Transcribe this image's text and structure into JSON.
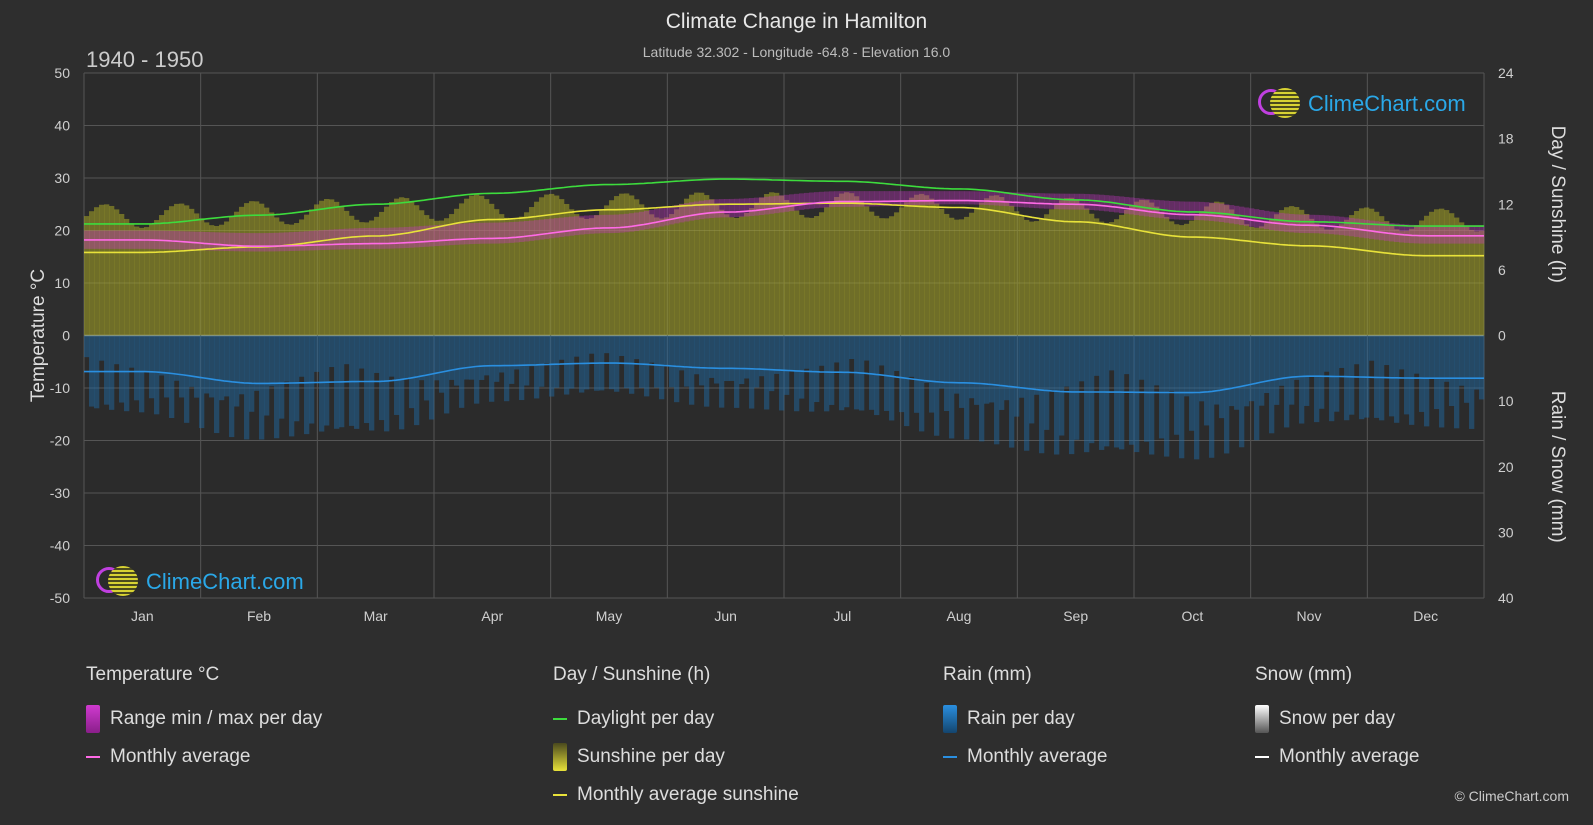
{
  "header": {
    "title": "Climate Change in Hamilton",
    "subtitle": "Latitude 32.302 - Longitude -64.8 - Elevation 16.0",
    "period": "1940 - 1950"
  },
  "logo": {
    "text": "ClimeChart.com"
  },
  "copyright": "© ClimeChart.com",
  "legend": {
    "temperature": {
      "title": "Temperature °C",
      "range": "Range min / max per day",
      "avg": "Monthly average"
    },
    "sunshine": {
      "title": "Day / Sunshine (h)",
      "daylight": "Daylight per day",
      "sunshine": "Sunshine per day",
      "avg": "Monthly average sunshine"
    },
    "rain": {
      "title": "Rain (mm)",
      "per_day": "Rain per day",
      "avg": "Monthly average"
    },
    "snow": {
      "title": "Snow (mm)",
      "per_day": "Snow per day",
      "avg": "Monthly average"
    }
  },
  "colors": {
    "background": "#2e2e2e",
    "daylight": "#3ddc3d",
    "sunshine_fill": "#a8a626",
    "sunshine_avg": "#e8e23a",
    "temp_range": "#cc33cc",
    "temp_avg": "#ff6ae6",
    "rain": "#1f6fae",
    "rain_avg": "#2a8fe0",
    "snow_avg": "#ffffff"
  },
  "chart_data": {
    "type": "line",
    "categories": [
      "Jan",
      "Feb",
      "Mar",
      "Apr",
      "May",
      "Jun",
      "Jul",
      "Aug",
      "Sep",
      "Oct",
      "Nov",
      "Dec"
    ],
    "y_left": {
      "label": "Temperature °C",
      "range": [
        -50,
        50
      ],
      "ticks": [
        50,
        40,
        30,
        20,
        10,
        0,
        -10,
        -20,
        -30,
        -40,
        -50
      ]
    },
    "y_right_top": {
      "label": "Day / Sunshine (h)",
      "range": [
        0,
        24
      ],
      "ticks": [
        24,
        18,
        12,
        6,
        0
      ]
    },
    "y_right_bottom": {
      "label": "Rain / Snow (mm)",
      "range": [
        0,
        40
      ],
      "ticks": [
        0,
        10,
        20,
        30,
        40
      ]
    },
    "series": [
      {
        "name": "Daylight per day",
        "axis": "sunshine_h",
        "values": [
          10.2,
          11.0,
          12.0,
          13.0,
          13.8,
          14.3,
          14.1,
          13.4,
          12.4,
          11.3,
          10.4,
          10.0
        ]
      },
      {
        "name": "Sunshine per day",
        "axis": "sunshine_h",
        "values": [
          12.0,
          12.3,
          12.6,
          12.9,
          13.0,
          13.1,
          13.1,
          12.9,
          12.6,
          12.3,
          11.8,
          11.6
        ]
      },
      {
        "name": "Monthly average sunshine",
        "axis": "sunshine_h",
        "values": [
          7.6,
          8.1,
          9.1,
          10.6,
          11.5,
          12.0,
          12.1,
          11.7,
          10.4,
          9.0,
          8.2,
          7.3
        ]
      },
      {
        "name": "Range min / max per day",
        "axis": "temperature_c",
        "values_min": [
          16.5,
          16.0,
          16.5,
          17.5,
          19.5,
          22.5,
          24.5,
          25.0,
          24.0,
          22.0,
          19.5,
          17.5
        ],
        "values_max": [
          20.0,
          19.5,
          20.5,
          21.5,
          23.0,
          26.0,
          27.5,
          27.5,
          27.0,
          25.5,
          23.0,
          21.0
        ]
      },
      {
        "name": "Monthly average",
        "axis": "temperature_c",
        "values": [
          18.2,
          17.0,
          17.5,
          18.5,
          20.5,
          23.5,
          25.5,
          25.7,
          25.0,
          23.0,
          21.0,
          19.0
        ]
      },
      {
        "name": "Rain monthly average",
        "axis": "rain_mm",
        "values": [
          5.5,
          7.3,
          7.0,
          4.6,
          4.2,
          5.0,
          5.6,
          7.2,
          8.6,
          8.7,
          6.2,
          6.5
        ]
      }
    ]
  }
}
